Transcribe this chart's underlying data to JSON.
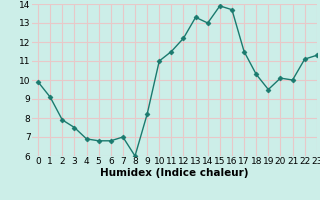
{
  "x": [
    0,
    1,
    2,
    3,
    4,
    5,
    6,
    7,
    8,
    9,
    10,
    11,
    12,
    13,
    14,
    15,
    16,
    17,
    18,
    19,
    20,
    21,
    22,
    23
  ],
  "y": [
    9.9,
    9.1,
    7.9,
    7.5,
    6.9,
    6.8,
    6.8,
    7.0,
    6.0,
    8.2,
    11.0,
    11.5,
    12.2,
    13.3,
    13.0,
    13.9,
    13.7,
    11.5,
    10.3,
    9.5,
    10.1,
    10.0,
    11.1,
    11.3
  ],
  "line_color": "#1a7a6e",
  "marker_color": "#1a7a6e",
  "bg_color": "#cceee8",
  "grid_color": "#e8c8c8",
  "xlabel": "Humidex (Indice chaleur)",
  "ylim": [
    6,
    14
  ],
  "xlim": [
    -0.5,
    23
  ],
  "yticks": [
    6,
    7,
    8,
    9,
    10,
    11,
    12,
    13,
    14
  ],
  "xticks": [
    0,
    1,
    2,
    3,
    4,
    5,
    6,
    7,
    8,
    9,
    10,
    11,
    12,
    13,
    14,
    15,
    16,
    17,
    18,
    19,
    20,
    21,
    22,
    23
  ],
  "xlabel_fontsize": 7.5,
  "tick_fontsize": 6.5,
  "line_width": 1.0,
  "marker_size": 2.5
}
